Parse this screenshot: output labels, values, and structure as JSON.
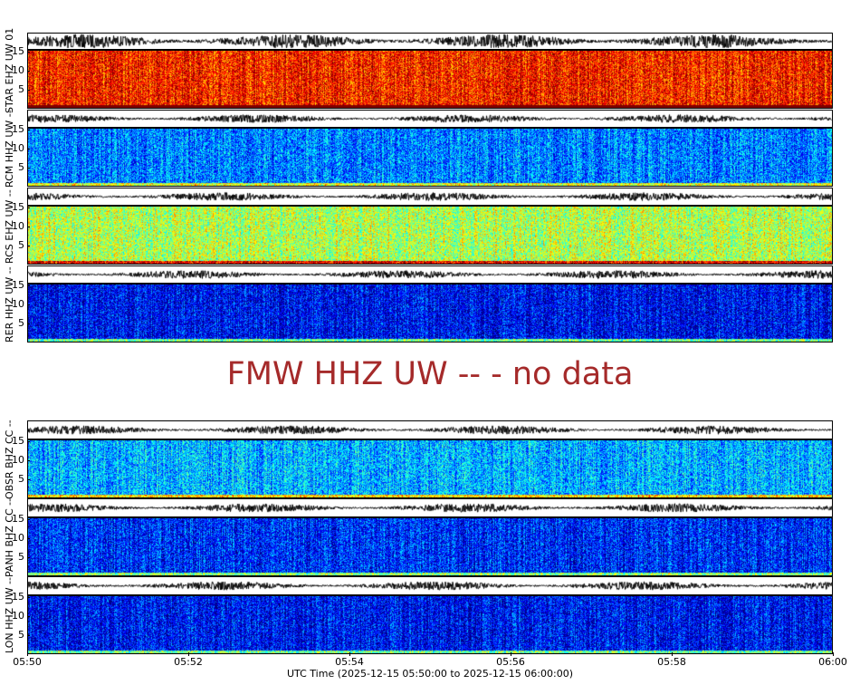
{
  "chart_data": {
    "type": "heatmap",
    "title": "FMW HHZ UW -- - no data",
    "xlabel": "UTC Time (2025-12-15 05:50:00 to 2025-12-15 06:00:00)",
    "x_ticks": [
      "05:50",
      "05:52",
      "05:54",
      "05:56",
      "05:58",
      "06:00"
    ],
    "y_ticks": [
      "5",
      "10",
      "15"
    ],
    "ylim": [
      0.5,
      15.5
    ],
    "colormap": "jet",
    "groups": [
      {
        "stations": [
          {
            "label": "STAR EHZ UW 01",
            "level": 0.85
          },
          {
            "label": "RCM HHZ UW --",
            "level": 0.25
          },
          {
            "label": "RCS EHZ UW --",
            "level": 0.55
          },
          {
            "label": "RER HHZ UW --",
            "level": 0.12
          }
        ]
      },
      {
        "stations": [
          {
            "label": "OBSR BHZ CC --",
            "level": 0.3
          },
          {
            "label": "PANH BHZ CC --",
            "level": 0.16
          },
          {
            "label": "LON HHZ UW --",
            "level": 0.13
          }
        ]
      }
    ],
    "no_data_color": "#a52a2a"
  }
}
